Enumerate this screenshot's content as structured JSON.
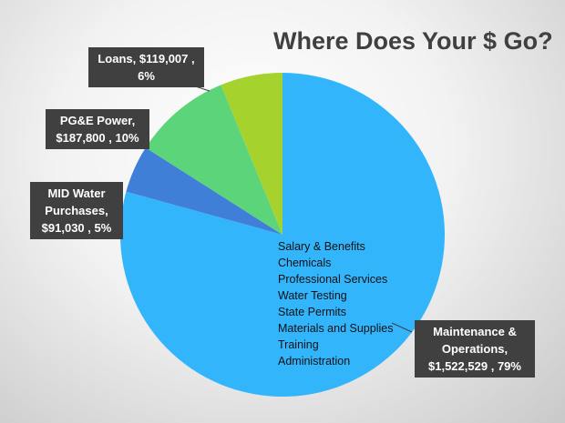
{
  "chart_data": {
    "type": "pie",
    "title": "Where Does Your $ Go?",
    "categories": [
      "Maintenance & Operations",
      "MID Water Purchases",
      "PG&E Power",
      "Loans"
    ],
    "values": [
      1522529,
      91030,
      187800,
      119007
    ],
    "value_labels": [
      "$1,522,529",
      "$91,030",
      "$187,800",
      "$119,007"
    ],
    "percents": [
      79,
      5,
      10,
      6
    ],
    "percent_labels": [
      "79%",
      "5%",
      "10%",
      "6%"
    ],
    "separator": ",",
    "colors": [
      "#33b5fc",
      "#3f7fd8",
      "#5cd57a",
      "#a5d22c"
    ],
    "annotation_lines": [
      "Salary & Benefits",
      "Chemicals",
      "Professional Services",
      "Water Testing",
      "State Permits",
      "Materials and Supplies",
      "Training",
      "Administration"
    ]
  }
}
